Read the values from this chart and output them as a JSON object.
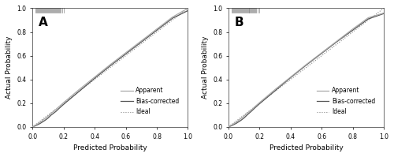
{
  "panel_A_label": "A",
  "panel_B_label": "B",
  "xlabel": "Predicted Probability",
  "ylabel": "Actual Probability",
  "xlim": [
    0,
    1.0
  ],
  "ylim": [
    0,
    1.0
  ],
  "xticks": [
    0.0,
    0.2,
    0.4,
    0.6,
    0.8,
    1.0
  ],
  "yticks": [
    0.0,
    0.2,
    0.4,
    0.6,
    0.8,
    1.0
  ],
  "legend_labels": [
    "Apparent",
    "Bias-corrected",
    "Ideal"
  ],
  "line_apparent_color": "#aaaaaa",
  "line_biascorrected_color": "#555555",
  "line_ideal_color": "#888888",
  "background_color": "#ffffff",
  "tick_fontsize": 5.5,
  "label_fontsize": 6.5,
  "legend_fontsize": 5.5,
  "panel_label_fontsize": 11,
  "rug_color": "#888888",
  "figsize": [
    5.0,
    1.99
  ],
  "dpi": 100,
  "apparent_A_x": [
    0.0,
    0.02,
    0.05,
    0.08,
    0.1,
    0.12,
    0.15,
    0.17,
    0.2,
    0.25,
    0.3,
    0.4,
    0.5,
    0.6,
    0.7,
    0.8,
    0.9,
    1.0
  ],
  "apparent_A_y": [
    0.0,
    0.015,
    0.04,
    0.07,
    0.09,
    0.115,
    0.145,
    0.17,
    0.205,
    0.26,
    0.315,
    0.42,
    0.525,
    0.625,
    0.725,
    0.825,
    0.925,
    1.0
  ],
  "biascorr_A_x": [
    0.0,
    0.02,
    0.05,
    0.08,
    0.1,
    0.12,
    0.15,
    0.17,
    0.2,
    0.25,
    0.3,
    0.4,
    0.5,
    0.6,
    0.7,
    0.8,
    0.9,
    1.0
  ],
  "biascorr_A_y": [
    0.0,
    0.01,
    0.03,
    0.055,
    0.075,
    0.1,
    0.13,
    0.155,
    0.19,
    0.245,
    0.3,
    0.41,
    0.515,
    0.615,
    0.715,
    0.815,
    0.915,
    0.98
  ],
  "apparent_B_x": [
    0.0,
    0.02,
    0.05,
    0.08,
    0.1,
    0.12,
    0.15,
    0.17,
    0.2,
    0.25,
    0.3,
    0.4,
    0.5,
    0.6,
    0.7,
    0.8,
    0.9,
    1.0
  ],
  "apparent_B_y": [
    0.0,
    0.015,
    0.04,
    0.07,
    0.09,
    0.115,
    0.145,
    0.17,
    0.205,
    0.26,
    0.315,
    0.42,
    0.525,
    0.625,
    0.725,
    0.825,
    0.92,
    0.96
  ],
  "biascorr_B_x": [
    0.0,
    0.02,
    0.05,
    0.08,
    0.1,
    0.12,
    0.15,
    0.17,
    0.2,
    0.25,
    0.3,
    0.4,
    0.5,
    0.6,
    0.7,
    0.8,
    0.9,
    1.0
  ],
  "biascorr_B_y": [
    0.0,
    0.01,
    0.03,
    0.055,
    0.075,
    0.1,
    0.135,
    0.16,
    0.195,
    0.25,
    0.305,
    0.415,
    0.52,
    0.62,
    0.72,
    0.815,
    0.91,
    0.955
  ],
  "rug_ticks_A": [
    0.02,
    0.025,
    0.03,
    0.035,
    0.04,
    0.045,
    0.05,
    0.055,
    0.06,
    0.065,
    0.07,
    0.075,
    0.08,
    0.085,
    0.09,
    0.095,
    0.1,
    0.105,
    0.11,
    0.115,
    0.12,
    0.125,
    0.13,
    0.135,
    0.14,
    0.145,
    0.15,
    0.155,
    0.16,
    0.165,
    0.17,
    0.175,
    0.18,
    0.19,
    0.2
  ],
  "rug_ticks_B": [
    0.02,
    0.025,
    0.03,
    0.035,
    0.04,
    0.045,
    0.05,
    0.055,
    0.06,
    0.065,
    0.07,
    0.075,
    0.08,
    0.085,
    0.09,
    0.095,
    0.1,
    0.105,
    0.11,
    0.115,
    0.12,
    0.125,
    0.13,
    0.135,
    0.14,
    0.145,
    0.15,
    0.155,
    0.16,
    0.165,
    0.17,
    0.175,
    0.18,
    0.19,
    0.2
  ]
}
